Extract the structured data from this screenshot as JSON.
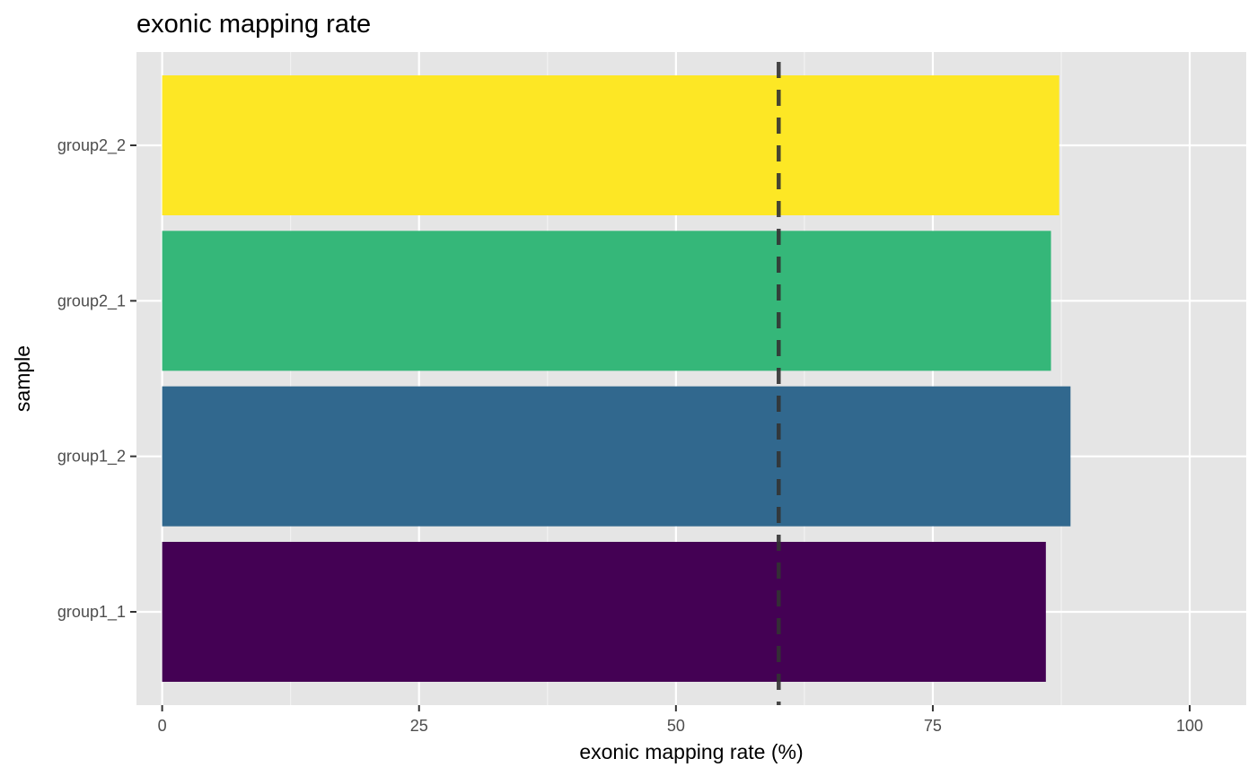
{
  "chart_data": {
    "type": "bar",
    "orientation": "horizontal",
    "title": "exonic mapping rate",
    "xlabel": "exonic mapping rate (%)",
    "ylabel": "sample",
    "categories": [
      "group1_1",
      "group1_2",
      "group2_1",
      "group2_2"
    ],
    "values": [
      86.0,
      88.4,
      86.5,
      87.3
    ],
    "colors": [
      "#440154",
      "#31688E",
      "#35B779",
      "#FDE725"
    ],
    "xlim": [
      -2.5,
      105.5
    ],
    "x_ticks": [
      "0",
      "25",
      "50",
      "75",
      "100"
    ],
    "reference_line": {
      "x": 60,
      "style": "dashed",
      "color": "#333333"
    },
    "grid": true,
    "legend": "none",
    "panel_background": "#e5e5e5"
  }
}
